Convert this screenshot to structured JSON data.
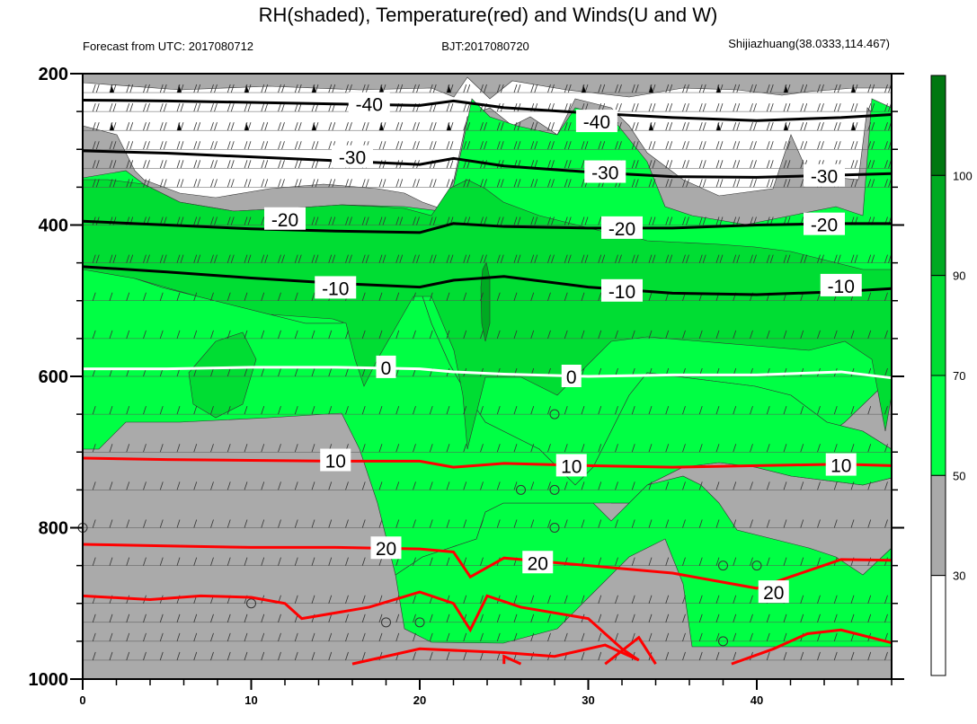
{
  "chart_data": {
    "type": "time-height cross section (filled contour + line contours + wind barbs)",
    "title": "RH(shaded), Temperature(red) and Winds(U and W)",
    "subtitle_left": "Forecast from UTC: 2017080712",
    "subtitle_center": "BJT:2017080720",
    "subtitle_right": "Shijiazhuang(38.0333,114.467)",
    "x_axis": {
      "range": [
        0,
        48
      ],
      "ticks": [
        "0",
        "10",
        "20",
        "30",
        "40"
      ],
      "tick_values": [
        0,
        10,
        20,
        30,
        40
      ]
    },
    "y_axis": {
      "range": [
        200,
        1000
      ],
      "ticks": [
        "200",
        "400",
        "600",
        "800",
        "1000"
      ],
      "tick_values": [
        200,
        400,
        600,
        800,
        1000
      ],
      "reversed": true
    },
    "wind_levels": [
      225,
      250,
      275,
      300,
      325,
      350,
      400,
      450,
      500,
      550,
      600,
      650,
      700,
      750,
      800,
      850,
      900,
      925,
      950,
      975
    ],
    "rh_colorbar": {
      "levels": [
        "30",
        "50",
        "70",
        "90",
        "100"
      ],
      "colors": [
        "#ffffff",
        "#aaaaaa",
        "#00ff44",
        "#00dd33",
        "#00aa22",
        "#007711"
      ]
    },
    "temperature_contours": [
      {
        "label": "-40",
        "color": "#000000",
        "x": [
          0,
          5,
          10,
          15,
          20,
          22,
          25,
          30,
          35,
          40,
          45,
          48
        ],
        "y": [
          235,
          236,
          238,
          240,
          242,
          236,
          245,
          252,
          258,
          262,
          258,
          254
        ],
        "labels": [
          {
            "text": "-40",
            "x": 17,
            "y": 240
          },
          {
            "text": "-40",
            "x": 30.5,
            "y": 263
          }
        ]
      },
      {
        "label": "-30",
        "color": "#000000",
        "x": [
          0,
          5,
          10,
          15,
          20,
          22,
          25,
          30,
          35,
          40,
          45,
          48
        ],
        "y": [
          302,
          305,
          310,
          315,
          320,
          312,
          322,
          330,
          336,
          337,
          334,
          332
        ],
        "labels": [
          {
            "text": "-30",
            "x": 16,
            "y": 310
          },
          {
            "text": "-30",
            "x": 31,
            "y": 330
          },
          {
            "text": "-30",
            "x": 44,
            "y": 335
          }
        ]
      },
      {
        "label": "-20",
        "color": "#000000",
        "x": [
          0,
          5,
          10,
          15,
          20,
          22,
          25,
          30,
          35,
          40,
          45,
          48
        ],
        "y": [
          395,
          400,
          405,
          408,
          410,
          398,
          402,
          404,
          404,
          400,
          398,
          398
        ],
        "labels": [
          {
            "text": "-20",
            "x": 12,
            "y": 392
          },
          {
            "text": "-20",
            "x": 32,
            "y": 404
          },
          {
            "text": "-20",
            "x": 44,
            "y": 399
          }
        ]
      },
      {
        "label": "-10",
        "color": "#000000",
        "x": [
          0,
          5,
          10,
          15,
          20,
          22,
          25,
          30,
          35,
          40,
          45,
          48
        ],
        "y": [
          455,
          462,
          470,
          477,
          482,
          473,
          468,
          482,
          490,
          492,
          488,
          484
        ],
        "labels": [
          {
            "text": "-10",
            "x": 15,
            "y": 483
          },
          {
            "text": "-10",
            "x": 32,
            "y": 487
          },
          {
            "text": "-10",
            "x": 45,
            "y": 480
          }
        ]
      },
      {
        "label": "0",
        "color": "#ffffff",
        "x": [
          0,
          5,
          10,
          15,
          20,
          22,
          25,
          30,
          35,
          40,
          45,
          48
        ],
        "y": [
          590,
          590,
          588,
          588,
          590,
          594,
          597,
          600,
          598,
          598,
          594,
          602
        ],
        "labels": [
          {
            "text": "0",
            "x": 18,
            "y": 588
          },
          {
            "text": "0",
            "x": 29,
            "y": 600
          }
        ]
      },
      {
        "label": "10",
        "color": "#ff0000",
        "x": [
          0,
          5,
          10,
          15,
          20,
          22,
          25,
          30,
          35,
          40,
          45,
          48
        ],
        "y": [
          708,
          710,
          711,
          712,
          712,
          720,
          715,
          718,
          720,
          718,
          716,
          718
        ],
        "labels": [
          {
            "text": "10",
            "x": 15,
            "y": 711
          },
          {
            "text": "10",
            "x": 29,
            "y": 718
          },
          {
            "text": "10",
            "x": 45,
            "y": 717
          }
        ]
      },
      {
        "label": "20",
        "color": "#ff0000",
        "x": [
          0,
          5,
          10,
          15,
          20,
          22,
          23,
          25,
          30,
          35,
          40,
          45,
          48
        ],
        "y": [
          822,
          824,
          826,
          826,
          828,
          832,
          865,
          840,
          850,
          860,
          880,
          842,
          843
        ],
        "labels": [
          {
            "text": "20",
            "x": 18,
            "y": 827
          },
          {
            "text": "20",
            "x": 27,
            "y": 846
          },
          {
            "text": "20",
            "x": 41,
            "y": 885
          }
        ]
      }
    ]
  }
}
